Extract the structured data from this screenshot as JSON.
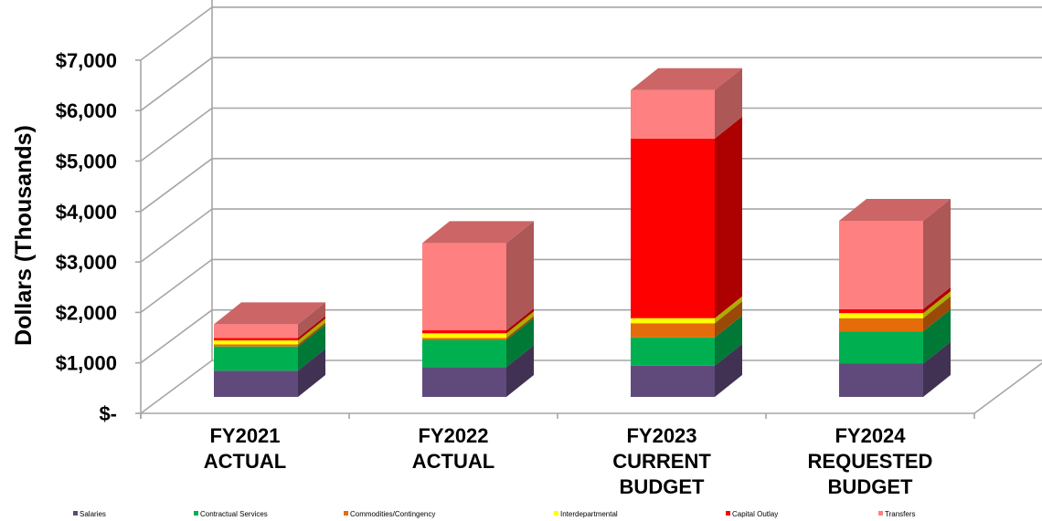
{
  "chart_data": {
    "type": "bar",
    "stacked": true,
    "three_d": true,
    "ylabel": "Dollars (Thousands)",
    "ylim": [
      0,
      7000
    ],
    "y_ticks": [
      {
        "value": 0,
        "label": "$-"
      },
      {
        "value": 1000,
        "label": "$1,000"
      },
      {
        "value": 2000,
        "label": "$2,000"
      },
      {
        "value": 3000,
        "label": "$3,000"
      },
      {
        "value": 4000,
        "label": "$4,000"
      },
      {
        "value": 5000,
        "label": "$5,000"
      },
      {
        "value": 6000,
        "label": "$6,000"
      },
      {
        "value": 7000,
        "label": "$7,000"
      }
    ],
    "categories": [
      [
        "FY2021",
        "ACTUAL"
      ],
      [
        "FY2022",
        "ACTUAL"
      ],
      [
        "FY2023",
        "CURRENT",
        "BUDGET"
      ],
      [
        "FY2024",
        "REQUESTED",
        "BUDGET"
      ]
    ],
    "legend_position": "bottom",
    "grid": true,
    "series": [
      {
        "name": "Salaries",
        "color": "#604A7B",
        "values": [
          520,
          590,
          620,
          660
        ]
      },
      {
        "name": "Contractual Services",
        "color": "#00B050",
        "values": [
          480,
          540,
          560,
          640
        ]
      },
      {
        "name": "Commodities/Contingency",
        "color": "#E46C0A",
        "values": [
          40,
          40,
          280,
          260
        ]
      },
      {
        "name": "Interdepartmental",
        "color": "#FFFF00",
        "values": [
          80,
          90,
          100,
          100
        ]
      },
      {
        "name": "Capital Outlay",
        "color": "#FF0000",
        "values": [
          50,
          60,
          3560,
          80
        ]
      },
      {
        "name": "Transfers",
        "color": "#FF8080",
        "values": [
          270,
          1730,
          960,
          1750
        ]
      }
    ]
  }
}
